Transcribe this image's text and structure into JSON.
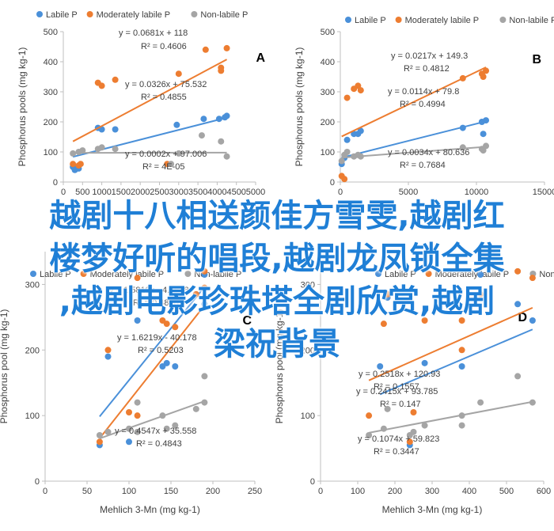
{
  "colors": {
    "labile": "#4a90d9",
    "moderate": "#ed7d31",
    "nonlabile": "#a5a5a5",
    "overlay": "#1f7fd6"
  },
  "overlay_text": {
    "line1": "越剧十八相送颜佳方雪雯,越剧红",
    "line2": "楼梦好听的唱段,越剧龙凤锁全集",
    "line3": ",越剧电影珍珠塔全剧欣赏,越剧",
    "line4": "梁祝背景"
  },
  "chart_data": [
    {
      "type": "scatter",
      "panel": "A",
      "xlabel": "",
      "ylabel": "Phosphorus pools (mg kg-1)",
      "xlim": [
        0,
        5000
      ],
      "ylim": [
        0,
        500
      ],
      "xticks": [
        0,
        500,
        1000,
        1500,
        2000,
        2500,
        3000,
        3500,
        4000,
        4500,
        5000
      ],
      "yticks": [
        0,
        100,
        200,
        300,
        400,
        500
      ],
      "legend_position": "top",
      "series": [
        {
          "name": "Labile P",
          "color": "#4a90d9",
          "points": [
            [
              250,
              50
            ],
            [
              300,
              40
            ],
            [
              400,
              45
            ],
            [
              900,
              180
            ],
            [
              1000,
              175
            ],
            [
              1350,
              175
            ],
            [
              2950,
              190
            ],
            [
              3650,
              210
            ],
            [
              4050,
              210
            ],
            [
              4200,
              215
            ],
            [
              4250,
              220
            ]
          ],
          "trendline": {
            "slope": 0.0326,
            "intercept": 75.532,
            "equation": "y = 0.0326x + 75.532",
            "r2": "R² = 0.4855"
          }
        },
        {
          "name": "Moderately labile P",
          "color": "#ed7d31",
          "points": [
            [
              250,
              60
            ],
            [
              400,
              55
            ],
            [
              450,
              60
            ],
            [
              900,
              330
            ],
            [
              1000,
              320
            ],
            [
              1350,
              340
            ],
            [
              2700,
              60
            ],
            [
              3000,
              360
            ],
            [
              3700,
              440
            ],
            [
              4100,
              370
            ],
            [
              4100,
              380
            ],
            [
              4250,
              445
            ]
          ],
          "trendline": {
            "slope": 0.0681,
            "intercept": 118,
            "equation": "y = 0.0681x + 118",
            "r2": "R² = 0.4606"
          }
        },
        {
          "name": "Non-labile P",
          "color": "#a5a5a5",
          "points": [
            [
              250,
              95
            ],
            [
              400,
              100
            ],
            [
              500,
              105
            ],
            [
              900,
              110
            ],
            [
              1000,
              115
            ],
            [
              1350,
              110
            ],
            [
              2800,
              60
            ],
            [
              3000,
              95
            ],
            [
              3600,
              155
            ],
            [
              4100,
              135
            ],
            [
              4250,
              85
            ]
          ],
          "trendline": {
            "slope": 0.0002,
            "intercept": 97.006,
            "equation": "y = 0.0002x + 97.006",
            "r2": "R² = 4E-05"
          }
        }
      ]
    },
    {
      "type": "scatter",
      "panel": "B",
      "xlabel": "",
      "ylabel": "Phosphorus pools (mg kg-1)",
      "xlim": [
        0,
        15000
      ],
      "ylim": [
        0,
        500
      ],
      "xticks": [
        0,
        5000,
        10000,
        15000
      ],
      "yticks": [
        0,
        100,
        200,
        300,
        400,
        500
      ],
      "legend_position": "top",
      "series": [
        {
          "name": "Labile P",
          "color": "#4a90d9",
          "points": [
            [
              100,
              60
            ],
            [
              300,
              80
            ],
            [
              500,
              140
            ],
            [
              1000,
              160
            ],
            [
              1300,
              160
            ],
            [
              1500,
              170
            ],
            [
              9000,
              180
            ],
            [
              10400,
              200
            ],
            [
              10500,
              160
            ],
            [
              10700,
              205
            ]
          ],
          "trendline": {
            "slope": 0.0114,
            "intercept": 79.8,
            "equation": "y = 0.0114x + 79.8",
            "r2": "R² = 0.4994"
          }
        },
        {
          "name": "Moderately labile P",
          "color": "#ed7d31",
          "points": [
            [
              100,
              20
            ],
            [
              300,
              10
            ],
            [
              500,
              280
            ],
            [
              1000,
              310
            ],
            [
              1300,
              320
            ],
            [
              1500,
              305
            ],
            [
              9000,
              345
            ],
            [
              10400,
              360
            ],
            [
              10500,
              350
            ],
            [
              10700,
              370
            ]
          ],
          "trendline": {
            "slope": 0.0217,
            "intercept": 149.3,
            "equation": "y = 0.0217x + 149.3",
            "r2": "R² = 0.4812"
          }
        },
        {
          "name": "Non-labile P",
          "color": "#a5a5a5",
          "points": [
            [
              100,
              70
            ],
            [
              300,
              90
            ],
            [
              500,
              100
            ],
            [
              1000,
              85
            ],
            [
              1300,
              90
            ],
            [
              1500,
              85
            ],
            [
              9000,
              115
            ],
            [
              10400,
              110
            ],
            [
              10500,
              105
            ],
            [
              10700,
              120
            ]
          ],
          "trendline": {
            "slope": 0.0034,
            "intercept": 80.636,
            "equation": "y = 0.0034x + 80.636",
            "r2": "R² = 0.7684"
          }
        }
      ]
    },
    {
      "type": "scatter",
      "panel": "C",
      "xlabel": "Mehlich 3-Mn (mg kg-1)",
      "ylabel": "Phosphorus pool (mg kg-1)",
      "xlim": [
        0,
        250
      ],
      "ylim": [
        0,
        350
      ],
      "xticks": [
        0,
        50,
        100,
        150,
        200,
        250
      ],
      "yticks": [
        0,
        100,
        200,
        300
      ],
      "legend_position": "top",
      "series": [
        {
          "name": "Labile P",
          "color": "#4a90d9",
          "points": [
            [
              65,
              55
            ],
            [
              75,
              190
            ],
            [
              100,
              60
            ],
            [
              110,
              245
            ],
            [
              140,
              175
            ],
            [
              145,
              180
            ],
            [
              155,
              175
            ],
            [
              180,
              285
            ],
            [
              190,
              270
            ],
            [
              190,
              315
            ]
          ],
          "trendline": {
            "slope": 1.5819,
            "intercept": -4.2568,
            "equation": "y = 1.5819x - 4.2568",
            "r2": "R² = 0.4818"
          }
        },
        {
          "name": "Moderately labile P",
          "color": "#ed7d31",
          "points": [
            [
              65,
              60
            ],
            [
              75,
              200
            ],
            [
              100,
              105
            ],
            [
              110,
              100
            ],
            [
              110,
              310
            ],
            [
              140,
              245
            ],
            [
              145,
              240
            ],
            [
              155,
              235
            ],
            [
              180,
              285
            ],
            [
              190,
              295
            ],
            [
              190,
              320
            ]
          ],
          "trendline": {
            "slope": 1.6219,
            "intercept": -40.178,
            "equation": "y = 1.6219x - 40.178",
            "r2": "R² = 0.5203"
          }
        },
        {
          "name": "Non-labile P",
          "color": "#a5a5a5",
          "points": [
            [
              65,
              70
            ],
            [
              75,
              75
            ],
            [
              100,
              80
            ],
            [
              110,
              75
            ],
            [
              110,
              120
            ],
            [
              140,
              100
            ],
            [
              145,
              80
            ],
            [
              155,
              85
            ],
            [
              180,
              110
            ],
            [
              190,
              120
            ],
            [
              190,
              160
            ]
          ],
          "trendline": {
            "slope": 0.4547,
            "intercept": 35.558,
            "equation": "y = 0.4547x + 35.558",
            "r2": "R² = 0.4843"
          }
        }
      ]
    },
    {
      "type": "scatter",
      "panel": "D",
      "xlabel": "Mehlich 3-Mn (mg kg-1)",
      "ylabel": "Phosphorus pool (mg kg-1)",
      "xlim": [
        0,
        600
      ],
      "ylim": [
        0,
        350
      ],
      "xticks": [
        0,
        100,
        200,
        300,
        400,
        500,
        600
      ],
      "yticks": [
        0,
        100,
        200,
        300
      ],
      "legend_position": "top",
      "series": [
        {
          "name": "Labile P",
          "color": "#4a90d9",
          "points": [
            [
              160,
              175
            ],
            [
              180,
              280
            ],
            [
              240,
              55
            ],
            [
              280,
              180
            ],
            [
              380,
              175
            ],
            [
              430,
              315
            ],
            [
              530,
              270
            ],
            [
              570,
              245
            ]
          ],
          "trendline": {
            "slope": 0.2415,
            "intercept": 93.785,
            "equation": "y = 0.2415x + 93.785",
            "r2": "R² = 0.147"
          }
        },
        {
          "name": "Moderately labile P",
          "color": "#ed7d31",
          "points": [
            [
              130,
              100
            ],
            [
              170,
              240
            ],
            [
              180,
              285
            ],
            [
              240,
              60
            ],
            [
              250,
              105
            ],
            [
              280,
              245
            ],
            [
              380,
              245
            ],
            [
              380,
              200
            ],
            [
              430,
              285
            ],
            [
              530,
              320
            ],
            [
              570,
              310
            ]
          ],
          "trendline": {
            "slope": 0.2518,
            "intercept": 120.93,
            "equation": "y = 0.2518x + 120.93",
            "r2": "R² = 0.1557"
          }
        },
        {
          "name": "Non-labile P",
          "color": "#a5a5a5",
          "points": [
            [
              130,
              70
            ],
            [
              170,
              80
            ],
            [
              180,
              110
            ],
            [
              240,
              70
            ],
            [
              250,
              75
            ],
            [
              280,
              85
            ],
            [
              380,
              85
            ],
            [
              380,
              100
            ],
            [
              430,
              120
            ],
            [
              530,
              160
            ],
            [
              570,
              120
            ]
          ],
          "trendline": {
            "slope": 0.1074,
            "intercept": 59.823,
            "equation": "y = 0.1074x + 59.823",
            "r2": "R² = 0.3447"
          }
        }
      ]
    }
  ]
}
